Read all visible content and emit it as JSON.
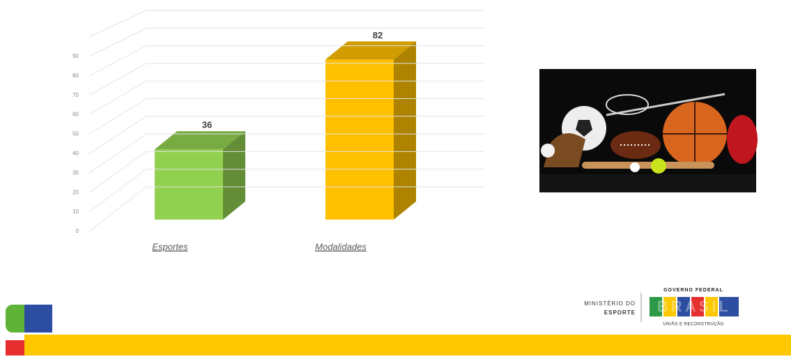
{
  "chart_data": {
    "type": "bar3d",
    "categories": [
      "Esportes",
      "Modalidades"
    ],
    "series": [
      {
        "values": [
          36,
          82
        ],
        "colors": [
          "#92d050",
          "#ffc000"
        ]
      }
    ],
    "ylim": [
      0,
      100
    ],
    "yticks": [
      0,
      10,
      20,
      30,
      40,
      50,
      60,
      70,
      80,
      90
    ],
    "grid": true
  },
  "footer": {
    "ministry_line1": "MINISTÉRIO DO",
    "ministry_line2": "ESPORTE",
    "gov": "GOVERNO FEDERAL",
    "brand": "BRASIL",
    "motto": "UNIÃO E RECONSTRUÇÃO"
  }
}
